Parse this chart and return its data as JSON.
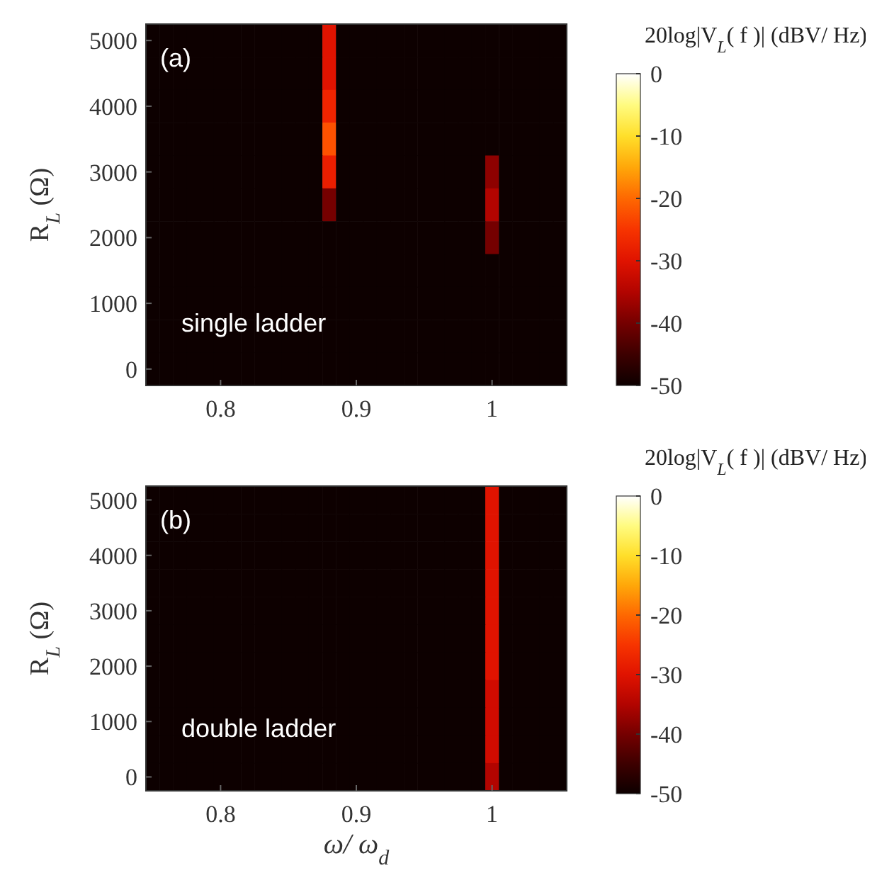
{
  "chart_data": [
    {
      "type": "heatmap",
      "ylabel": "R$_{L}$ (Ω)",
      "clabel": "20log|V$_{L}$( f )| (dBV/ Hz)",
      "annotations": [
        "(a)",
        "single ladder"
      ],
      "categories": [
        null,
        null,
        null,
        null,
        null,
        "0.8",
        null,
        null,
        null,
        null,
        null,
        null,
        null,
        null,
        null,
        "0.9",
        null,
        null,
        null,
        null,
        null,
        null,
        null,
        null,
        null,
        "1",
        null,
        null,
        null,
        null,
        null
      ],
      "y_categories": [
        "5000",
        null,
        "4000",
        null,
        "3000",
        null,
        "2000",
        null,
        "1000",
        null,
        "0"
      ],
      "clim": [
        -50,
        0
      ],
      "cticks": [
        0,
        -10,
        -20,
        -30,
        -40,
        -50
      ],
      "cells": [
        [
          -50,
          -50,
          -50,
          -50,
          -50,
          -50,
          -50,
          -50,
          -50,
          -50,
          -50,
          -50,
          -50,
          -30,
          -50,
          -50,
          -50,
          -50,
          -50,
          -50,
          -50,
          -50,
          -50,
          -50,
          -50,
          -50,
          -50,
          -50,
          -50,
          -50,
          -50
        ],
        [
          -50,
          -50,
          -50,
          -50,
          -50,
          -50,
          -50,
          -50,
          -50,
          -50,
          -50,
          -50,
          -50,
          -30,
          -50,
          -50,
          -50,
          -50,
          -50,
          -50,
          -50,
          -50,
          -50,
          -50,
          -50,
          -50,
          -50,
          -50,
          -50,
          -50,
          -50
        ],
        [
          -50,
          -50,
          -50,
          -50,
          -50,
          -50,
          -50,
          -50,
          -50,
          -50,
          -50,
          -50,
          -50,
          -27,
          -50,
          -50,
          -50,
          -50,
          -50,
          -50,
          -50,
          -50,
          -50,
          -50,
          -50,
          -50,
          -50,
          -50,
          -50,
          -50,
          -50
        ],
        [
          -50,
          -50,
          -50,
          -50,
          -50,
          -50,
          -50,
          -50,
          -50,
          -50,
          -50,
          -50,
          -50,
          -22,
          -50,
          -50,
          -50,
          -50,
          -50,
          -50,
          -50,
          -50,
          -50,
          -50,
          -50,
          -50,
          -50,
          -50,
          -50,
          -50,
          -50
        ],
        [
          -50,
          -50,
          -50,
          -50,
          -50,
          -50,
          -50,
          -50,
          -50,
          -50,
          -50,
          -50,
          -50,
          -28,
          -50,
          -50,
          -50,
          -50,
          -50,
          -50,
          -50,
          -50,
          -50,
          -50,
          -50,
          -38,
          -50,
          -50,
          -50,
          -50,
          -50
        ],
        [
          -50,
          -50,
          -50,
          -50,
          -50,
          -50,
          -50,
          -50,
          -50,
          -50,
          -50,
          -50,
          -50,
          -40,
          -50,
          -50,
          -50,
          -50,
          -50,
          -50,
          -50,
          -50,
          -50,
          -50,
          -50,
          -35,
          -50,
          -50,
          -50,
          -50,
          -50
        ],
        [
          -50,
          -50,
          -50,
          -50,
          -50,
          -50,
          -50,
          -50,
          -50,
          -50,
          -50,
          -50,
          -50,
          -50,
          -50,
          -50,
          -50,
          -50,
          -50,
          -50,
          -50,
          -50,
          -50,
          -50,
          -50,
          -40,
          -50,
          -50,
          -50,
          -50,
          -50
        ],
        [
          -50,
          -50,
          -50,
          -50,
          -50,
          -50,
          -50,
          -50,
          -50,
          -50,
          -50,
          -50,
          -50,
          -50,
          -50,
          -50,
          -50,
          -50,
          -50,
          -50,
          -50,
          -50,
          -50,
          -50,
          -50,
          -50,
          -50,
          -50,
          -50,
          -50,
          -50
        ],
        [
          -50,
          -50,
          -50,
          -50,
          -50,
          -50,
          -50,
          -50,
          -50,
          -50,
          -50,
          -50,
          -50,
          -50,
          -50,
          -50,
          -50,
          -50,
          -50,
          -50,
          -50,
          -50,
          -50,
          -50,
          -50,
          -50,
          -50,
          -50,
          -50,
          -50,
          -50
        ],
        [
          -50,
          -50,
          -50,
          -50,
          -50,
          -50,
          -50,
          -50,
          -50,
          -50,
          -50,
          -50,
          -50,
          -50,
          -50,
          -50,
          -50,
          -50,
          -50,
          -50,
          -50,
          -50,
          -50,
          -50,
          -50,
          -50,
          -50,
          -50,
          -50,
          -50,
          -50
        ],
        [
          -50,
          -50,
          -50,
          -50,
          -50,
          -50,
          -50,
          -50,
          -50,
          -50,
          -50,
          -50,
          -50,
          -50,
          -50,
          -50,
          -50,
          -50,
          -50,
          -50,
          -50,
          -50,
          -50,
          -50,
          -50,
          -50,
          -50,
          -50,
          -50,
          -50,
          -50
        ]
      ]
    },
    {
      "type": "heatmap",
      "xlabel": "ω/ ω$_{d}$",
      "ylabel": "R$_{L}$ (Ω)",
      "clabel": "20log|V$_{L}$( f )| (dBV/ Hz)",
      "annotations": [
        "(b)",
        "double ladder"
      ],
      "categories": [
        null,
        null,
        null,
        null,
        null,
        "0.8",
        null,
        null,
        null,
        null,
        null,
        null,
        null,
        null,
        null,
        "0.9",
        null,
        null,
        null,
        null,
        null,
        null,
        null,
        null,
        null,
        "1",
        null,
        null,
        null,
        null,
        null
      ],
      "y_categories": [
        "5000",
        null,
        "4000",
        null,
        "3000",
        null,
        "2000",
        null,
        "1000",
        null,
        "0"
      ],
      "clim": [
        -50,
        0
      ],
      "cticks": [
        0,
        -10,
        -20,
        -30,
        -40,
        -50
      ],
      "cells": [
        [
          -50,
          -50,
          -50,
          -50,
          -50,
          -50,
          -50,
          -50,
          -50,
          -50,
          -50,
          -50,
          -50,
          -50,
          -50,
          -50,
          -50,
          -50,
          -50,
          -50,
          -50,
          -50,
          -50,
          -50,
          -50,
          -30,
          -50,
          -50,
          -50,
          -50,
          -50
        ],
        [
          -50,
          -50,
          -50,
          -50,
          -50,
          -50,
          -50,
          -50,
          -50,
          -50,
          -50,
          -50,
          -50,
          -50,
          -50,
          -50,
          -50,
          -50,
          -50,
          -50,
          -50,
          -50,
          -50,
          -50,
          -50,
          -30,
          -50,
          -50,
          -50,
          -50,
          -50
        ],
        [
          -50,
          -50,
          -50,
          -50,
          -50,
          -50,
          -50,
          -50,
          -50,
          -50,
          -50,
          -50,
          -50,
          -50,
          -50,
          -50,
          -50,
          -50,
          -50,
          -50,
          -50,
          -50,
          -50,
          -50,
          -50,
          -30,
          -50,
          -50,
          -50,
          -50,
          -50
        ],
        [
          -50,
          -50,
          -50,
          -50,
          -50,
          -50,
          -50,
          -50,
          -50,
          -50,
          -50,
          -50,
          -50,
          -50,
          -50,
          -50,
          -50,
          -50,
          -50,
          -50,
          -50,
          -50,
          -50,
          -50,
          -50,
          -30,
          -50,
          -50,
          -50,
          -50,
          -50
        ],
        [
          -50,
          -50,
          -50,
          -50,
          -50,
          -50,
          -50,
          -50,
          -50,
          -50,
          -50,
          -50,
          -50,
          -50,
          -50,
          -50,
          -50,
          -50,
          -50,
          -50,
          -50,
          -50,
          -50,
          -50,
          -50,
          -30,
          -50,
          -50,
          -50,
          -50,
          -50
        ],
        [
          -50,
          -50,
          -50,
          -50,
          -50,
          -50,
          -50,
          -50,
          -50,
          -50,
          -50,
          -50,
          -50,
          -50,
          -50,
          -50,
          -50,
          -50,
          -50,
          -50,
          -50,
          -50,
          -50,
          -50,
          -50,
          -30,
          -50,
          -50,
          -50,
          -50,
          -50
        ],
        [
          -50,
          -50,
          -50,
          -50,
          -50,
          -50,
          -50,
          -50,
          -50,
          -50,
          -50,
          -50,
          -50,
          -50,
          -50,
          -50,
          -50,
          -50,
          -50,
          -50,
          -50,
          -50,
          -50,
          -50,
          -50,
          -30,
          -50,
          -50,
          -50,
          -50,
          -50
        ],
        [
          -50,
          -50,
          -50,
          -50,
          -50,
          -50,
          -50,
          -50,
          -50,
          -50,
          -50,
          -50,
          -50,
          -50,
          -50,
          -50,
          -50,
          -50,
          -50,
          -50,
          -50,
          -50,
          -50,
          -50,
          -50,
          -32,
          -50,
          -50,
          -50,
          -50,
          -50
        ],
        [
          -50,
          -50,
          -50,
          -50,
          -50,
          -50,
          -50,
          -50,
          -50,
          -50,
          -50,
          -50,
          -50,
          -50,
          -50,
          -50,
          -50,
          -50,
          -50,
          -50,
          -50,
          -50,
          -50,
          -50,
          -50,
          -32,
          -50,
          -50,
          -50,
          -50,
          -50
        ],
        [
          -50,
          -50,
          -50,
          -50,
          -50,
          -50,
          -50,
          -50,
          -50,
          -50,
          -50,
          -50,
          -50,
          -50,
          -50,
          -50,
          -50,
          -50,
          -50,
          -50,
          -50,
          -50,
          -50,
          -50,
          -50,
          -32,
          -50,
          -50,
          -50,
          -50,
          -50
        ],
        [
          -50,
          -50,
          -50,
          -50,
          -50,
          -50,
          -50,
          -50,
          -50,
          -50,
          -50,
          -50,
          -50,
          -50,
          -50,
          -50,
          -50,
          -50,
          -50,
          -50,
          -50,
          -50,
          -50,
          -50,
          -50,
          -35,
          -50,
          -50,
          -50,
          -50,
          -50
        ]
      ]
    }
  ]
}
